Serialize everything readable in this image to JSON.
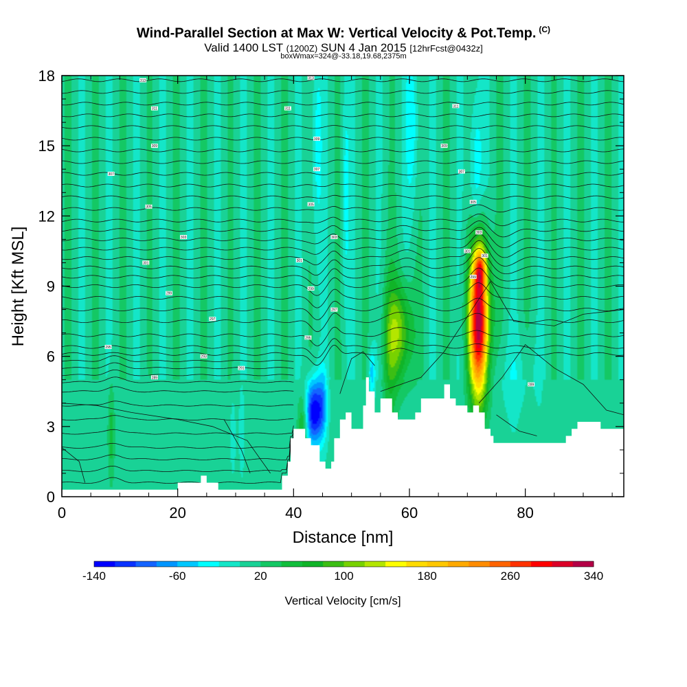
{
  "chart_data": {
    "type": "heatmap",
    "title": "Wind-Parallel Section at Max W: Vertical Velocity & Pot.Temp.",
    "title_mark": "(C)",
    "subtitle_main": "Valid 1400 LST",
    "subtitle_utc": "(1200Z)",
    "subtitle_date": "SUN 4 Jan 2015",
    "subtitle_fcst": "[12hrFcst@0432z]",
    "info_line": "boxWmax=324@-33.18,19.68,2375m",
    "xlabel": "Distance [nm]",
    "ylabel": "Height [Kft MSL]",
    "xlim": [
      0,
      97
    ],
    "ylim": [
      0,
      18
    ],
    "x_ticks": [
      0,
      20,
      40,
      60,
      80
    ],
    "y_ticks": [
      0,
      3,
      6,
      9,
      12,
      15,
      18
    ],
    "colorbar": {
      "title": "Vertical Velocity [cm/s]",
      "min": -140,
      "max": 340,
      "step": 20,
      "labels": [
        -140,
        -60,
        20,
        100,
        180,
        260,
        340
      ],
      "colors": [
        "#0000ff",
        "#0a32ff",
        "#1464ff",
        "#0096ff",
        "#00c8ff",
        "#00ffff",
        "#14e6c8",
        "#19d296",
        "#14c864",
        "#12be3c",
        "#10b428",
        "#3cbe14",
        "#78d200",
        "#b4e600",
        "#ffff00",
        "#ffdc00",
        "#ffc800",
        "#ffaa00",
        "#ff8c00",
        "#ff6400",
        "#ff3200",
        "#ff0000",
        "#dc0028",
        "#b40046"
      ]
    },
    "background_velocity": 10,
    "terrain_kft": [
      [
        0,
        0.3
      ],
      [
        20,
        0.3
      ],
      [
        20,
        0.6
      ],
      [
        24,
        0.6
      ],
      [
        24,
        0.9
      ],
      [
        25,
        0.9
      ],
      [
        25,
        0.6
      ],
      [
        27,
        0.6
      ],
      [
        27,
        0.3
      ],
      [
        38,
        0.3
      ],
      [
        38,
        0.9
      ],
      [
        39,
        0.9
      ],
      [
        39,
        1.5
      ],
      [
        39.5,
        1.5
      ],
      [
        39.5,
        2.5
      ],
      [
        40,
        2.5
      ],
      [
        40,
        2.9
      ],
      [
        42,
        2.9
      ],
      [
        42,
        2.5
      ],
      [
        43,
        2.5
      ],
      [
        43,
        2.2
      ],
      [
        44.5,
        2.2
      ],
      [
        44.5,
        1.5
      ],
      [
        45.5,
        1.5
      ],
      [
        45.5,
        1.2
      ],
      [
        46.5,
        1.2
      ],
      [
        46.5,
        1.5
      ],
      [
        47,
        1.5
      ],
      [
        47,
        2.5
      ],
      [
        48,
        2.5
      ],
      [
        48,
        3.3
      ],
      [
        49,
        3.3
      ],
      [
        49,
        3.6
      ],
      [
        50,
        3.6
      ],
      [
        50,
        2.9
      ],
      [
        52,
        2.9
      ],
      [
        52,
        3.9
      ],
      [
        52.5,
        3.9
      ],
      [
        52.5,
        5.1
      ],
      [
        53,
        5.1
      ],
      [
        53,
        4.5
      ],
      [
        54,
        4.5
      ],
      [
        54,
        3.6
      ],
      [
        55,
        3.6
      ],
      [
        55,
        4.2
      ],
      [
        57,
        4.2
      ],
      [
        57,
        3.6
      ],
      [
        58,
        3.6
      ],
      [
        58,
        3.3
      ],
      [
        61,
        3.3
      ],
      [
        61,
        3.6
      ],
      [
        62,
        3.6
      ],
      [
        62,
        4.2
      ],
      [
        66,
        4.2
      ],
      [
        66,
        4.8
      ],
      [
        67,
        4.8
      ],
      [
        67,
        4.2
      ],
      [
        68,
        4.2
      ],
      [
        68,
        3.9
      ],
      [
        70,
        3.9
      ],
      [
        70,
        3.6
      ],
      [
        71,
        3.6
      ],
      [
        71,
        3.9
      ],
      [
        72,
        3.9
      ],
      [
        72,
        3.6
      ],
      [
        73,
        3.6
      ],
      [
        73,
        2.9
      ],
      [
        74,
        2.9
      ],
      [
        74,
        2.6
      ],
      [
        74.5,
        2.6
      ],
      [
        74.5,
        2.3
      ],
      [
        87,
        2.3
      ],
      [
        87,
        2.6
      ],
      [
        88,
        2.6
      ],
      [
        88,
        2.9
      ],
      [
        89,
        2.9
      ],
      [
        89,
        3.2
      ],
      [
        93,
        3.2
      ],
      [
        93,
        2.9
      ],
      [
        97,
        2.9
      ]
    ],
    "velocity_features": [
      {
        "x": 72.0,
        "z": 7.5,
        "sx": 1.2,
        "sz": 2.3,
        "w": 330
      },
      {
        "x": 58.3,
        "z": 7.0,
        "sx": 1.5,
        "sz": 1.5,
        "w": 105
      },
      {
        "x": 72.2,
        "z": 9.7,
        "sx": 0.7,
        "sz": 0.6,
        "w": 110
      },
      {
        "x": 43.5,
        "z": 3.6,
        "sx": 1.0,
        "sz": 1.0,
        "w": -150
      },
      {
        "x": 45.0,
        "z": 4.0,
        "sx": 0.6,
        "sz": 1.0,
        "w": -60
      },
      {
        "x": 44.0,
        "z": 15.0,
        "sx": 0.7,
        "sz": 3.5,
        "w": -40
      },
      {
        "x": 49.0,
        "z": 13.0,
        "sx": 0.5,
        "sz": 3.5,
        "w": -35
      },
      {
        "x": 60.5,
        "z": 16.0,
        "sx": 0.8,
        "sz": 2.5,
        "w": -45
      },
      {
        "x": 71.5,
        "z": 13.5,
        "sx": 0.8,
        "sz": 2.8,
        "w": -55
      },
      {
        "x": 78.0,
        "z": 5.0,
        "sx": 3.0,
        "sz": 1.3,
        "w": -20
      },
      {
        "x": 29.5,
        "z": 2.5,
        "sx": 0.4,
        "sz": 1.5,
        "w": -25
      },
      {
        "x": 31.0,
        "z": 2.8,
        "sx": 0.3,
        "sz": 1.2,
        "w": -20
      },
      {
        "x": 8.5,
        "z": 2.6,
        "sx": 0.4,
        "sz": 1.5,
        "w": 45
      },
      {
        "x": 15.0,
        "z": 2.7,
        "sx": 0.5,
        "sz": 1.5,
        "w": -15
      },
      {
        "x": 41.5,
        "z": 3.0,
        "sx": 0.6,
        "sz": 1.0,
        "w": 60
      },
      {
        "x": 56.5,
        "z": 6.0,
        "sx": 0.8,
        "sz": 2.5,
        "w": 40
      },
      {
        "x": 53.5,
        "z": 5.3,
        "sx": 0.4,
        "sz": 0.7,
        "w": -60
      }
    ],
    "isentropes": {
      "levels_kft": [
        0.6,
        1.1,
        1.6,
        2.1,
        2.7,
        3.3,
        3.9,
        4.5,
        4.9,
        5.2,
        5.5,
        5.8,
        6.1,
        6.4,
        6.9,
        7.5,
        8.0,
        8.5,
        9.0,
        9.4,
        9.8,
        10.2,
        10.6,
        11.0,
        11.4,
        11.8,
        12.3,
        12.8,
        13.3,
        13.8,
        14.3,
        14.8,
        15.3,
        15.8,
        16.3,
        16.8,
        17.3,
        17.8
      ]
    },
    "isentrope_labels": [
      {
        "x": 14,
        "z": 17.8,
        "text": "313"
      },
      {
        "x": 43,
        "z": 17.9,
        "text": "313"
      },
      {
        "x": 16,
        "z": 16.6,
        "text": "311"
      },
      {
        "x": 39,
        "z": 16.6,
        "text": "311"
      },
      {
        "x": 68,
        "z": 16.7,
        "text": "311"
      },
      {
        "x": 16,
        "z": 15.0,
        "text": "309"
      },
      {
        "x": 44,
        "z": 15.3,
        "text": "309"
      },
      {
        "x": 66,
        "z": 15.0,
        "text": "309"
      },
      {
        "x": 8.5,
        "z": 13.8,
        "text": "307"
      },
      {
        "x": 44,
        "z": 14.0,
        "text": "307"
      },
      {
        "x": 69,
        "z": 13.9,
        "text": "307"
      },
      {
        "x": 15,
        "z": 12.4,
        "text": "305"
      },
      {
        "x": 43,
        "z": 12.5,
        "text": "305"
      },
      {
        "x": 71,
        "z": 12.6,
        "text": "305"
      },
      {
        "x": 21,
        "z": 11.1,
        "text": "303"
      },
      {
        "x": 47,
        "z": 11.1,
        "text": "303"
      },
      {
        "x": 72,
        "z": 11.3,
        "text": "303"
      },
      {
        "x": 14.5,
        "z": 10.0,
        "text": "301"
      },
      {
        "x": 41,
        "z": 10.1,
        "text": "301"
      },
      {
        "x": 70,
        "z": 10.5,
        "text": "301"
      },
      {
        "x": 73,
        "z": 10.3,
        "text": "301"
      },
      {
        "x": 18.5,
        "z": 8.7,
        "text": "299"
      },
      {
        "x": 43,
        "z": 8.9,
        "text": "299"
      },
      {
        "x": 71,
        "z": 9.4,
        "text": "299"
      },
      {
        "x": 26,
        "z": 7.6,
        "text": "297"
      },
      {
        "x": 47,
        "z": 8.0,
        "text": "297"
      },
      {
        "x": 8,
        "z": 6.4,
        "text": "295"
      },
      {
        "x": 42.5,
        "z": 6.8,
        "text": "295"
      },
      {
        "x": 24.5,
        "z": 6.0,
        "text": "293"
      },
      {
        "x": 31,
        "z": 5.5,
        "text": "291"
      },
      {
        "x": 16,
        "z": 5.1,
        "text": "289"
      },
      {
        "x": 81,
        "z": 4.8,
        "text": "289"
      }
    ]
  }
}
